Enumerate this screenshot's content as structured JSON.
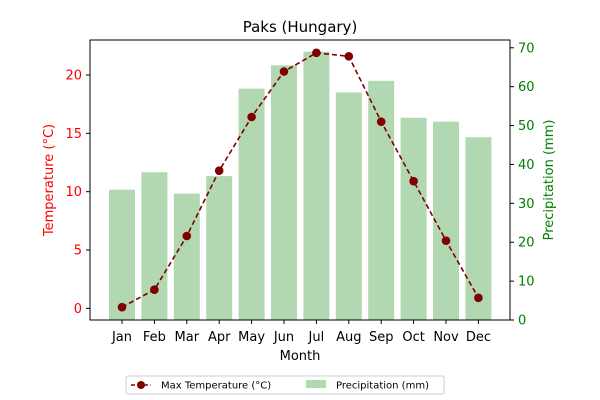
{
  "chart_data": {
    "type": "bar+line",
    "title": "Paks (Hungary)",
    "xlabel": "Month",
    "categories": [
      "Jan",
      "Feb",
      "Mar",
      "Apr",
      "May",
      "Jun",
      "Jul",
      "Aug",
      "Sep",
      "Oct",
      "Nov",
      "Dec"
    ],
    "series": [
      {
        "name": "Max Temperature (°C)",
        "type": "line",
        "axis": "left",
        "values": [
          0.1,
          1.6,
          6.2,
          11.8,
          16.4,
          20.3,
          21.9,
          21.6,
          16.0,
          10.9,
          5.8,
          0.9
        ],
        "color": "#800000",
        "style": "dashed",
        "marker": "circle"
      },
      {
        "name": "Precipitation (mm)",
        "type": "bar",
        "axis": "right",
        "values": [
          33.5,
          38.0,
          32.5,
          37.0,
          59.5,
          65.5,
          69.0,
          58.5,
          61.5,
          52.0,
          51.0,
          47.0
        ],
        "color": "#b2d8b2"
      }
    ],
    "left_axis": {
      "label": "Temperature (°C)",
      "color": "#ff0000",
      "range": [
        -1.0,
        23.0
      ],
      "ticks": [
        0,
        5,
        10,
        15,
        20
      ]
    },
    "right_axis": {
      "label": "Precipitation (mm)",
      "color": "#008000",
      "range": [
        0,
        72
      ],
      "ticks": [
        0,
        10,
        20,
        30,
        40,
        50,
        60,
        70
      ]
    },
    "grid": false,
    "legend": "bottom-center"
  }
}
